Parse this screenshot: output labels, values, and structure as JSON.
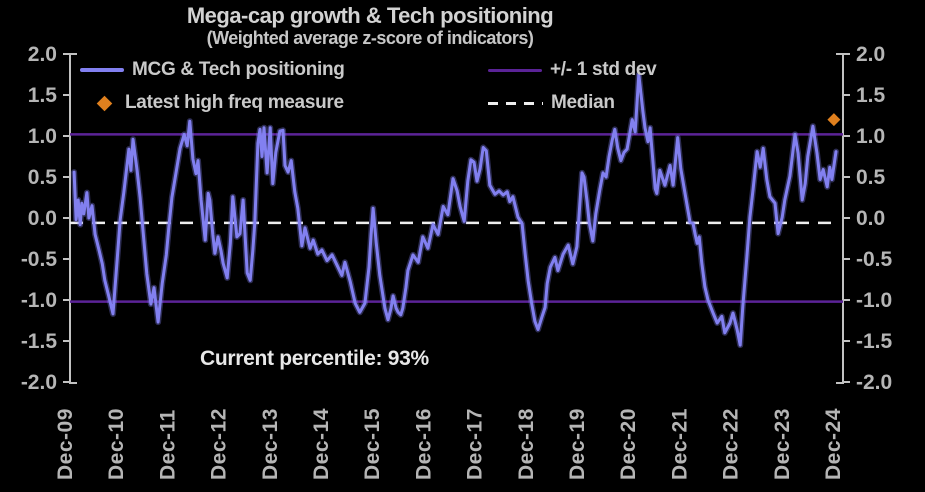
{
  "chart_data": {
    "type": "line",
    "title": "Mega-cap growth & Tech positioning",
    "subtitle": "(Weighted average z-score of indicators)",
    "annotation": "Current percentile: 93%",
    "legend": [
      {
        "label": "MCG & Tech positioning",
        "swatch": "line"
      },
      {
        "label": "+/- 1 std dev",
        "swatch": "line"
      },
      {
        "label": "Latest high freq measure",
        "swatch": "diamond"
      },
      {
        "label": "Median",
        "swatch": "dashed"
      }
    ],
    "x_unit": "years since Dec-2009",
    "x_ticks": [
      0,
      1,
      2,
      3,
      4,
      5,
      6,
      7,
      8,
      9,
      10,
      11,
      12,
      13,
      14,
      15
    ],
    "x_tick_labels": [
      "Dec-09",
      "Dec-10",
      "Dec-11",
      "Dec-12",
      "Dec-13",
      "Dec-14",
      "Dec-15",
      "Dec-16",
      "Dec-17",
      "Dec-18",
      "Dec-19",
      "Dec-20",
      "Dec-21",
      "Dec-22",
      "Dec-23",
      "Dec-24"
    ],
    "ylim": [
      -2.0,
      2.0
    ],
    "y_ticks": [
      2.0,
      1.5,
      1.0,
      0.5,
      0.0,
      -0.5,
      -1.0,
      -1.5,
      -2.0
    ],
    "y_tick_labels": [
      "2.0",
      "1.5",
      "1.0",
      "0.5",
      "0.0",
      "-0.5",
      "-1.0",
      "-1.5",
      "-2.0"
    ],
    "grid": false,
    "legend_position": "top-inside",
    "reference_lines": {
      "plus_one_std": 1.02,
      "minus_one_std": -1.02,
      "median": -0.06
    },
    "latest_high_freq_measure": {
      "t": 14.92,
      "value": 1.2
    },
    "series": [
      {
        "name": "MCG & Tech positioning",
        "points": [
          [
            0.08,
            0.56
          ],
          [
            0.12,
            -0.02
          ],
          [
            0.16,
            0.22
          ],
          [
            0.2,
            -0.08
          ],
          [
            0.23,
            0.18
          ],
          [
            0.27,
            0.05
          ],
          [
            0.33,
            0.31
          ],
          [
            0.37,
            0.0
          ],
          [
            0.43,
            0.15
          ],
          [
            0.49,
            -0.2
          ],
          [
            0.57,
            -0.4
          ],
          [
            0.63,
            -0.56
          ],
          [
            0.68,
            -0.76
          ],
          [
            0.76,
            -0.96
          ],
          [
            0.84,
            -1.17
          ],
          [
            0.92,
            -0.52
          ],
          [
            0.98,
            -0.02
          ],
          [
            1.05,
            0.31
          ],
          [
            1.15,
            0.84
          ],
          [
            1.19,
            0.58
          ],
          [
            1.23,
            0.96
          ],
          [
            1.31,
            0.58
          ],
          [
            1.37,
            0.25
          ],
          [
            1.43,
            -0.18
          ],
          [
            1.5,
            -0.68
          ],
          [
            1.58,
            -1.05
          ],
          [
            1.64,
            -0.85
          ],
          [
            1.72,
            -1.27
          ],
          [
            1.8,
            -0.8
          ],
          [
            1.88,
            -0.45
          ],
          [
            1.93,
            -0.12
          ],
          [
            1.99,
            0.25
          ],
          [
            2.07,
            0.55
          ],
          [
            2.15,
            0.85
          ],
          [
            2.23,
            1.02
          ],
          [
            2.29,
            0.88
          ],
          [
            2.34,
            1.18
          ],
          [
            2.4,
            0.72
          ],
          [
            2.46,
            0.54
          ],
          [
            2.5,
            0.7
          ],
          [
            2.56,
            0.22
          ],
          [
            2.64,
            -0.27
          ],
          [
            2.7,
            0.3
          ],
          [
            2.73,
            0.22
          ],
          [
            2.79,
            -0.2
          ],
          [
            2.83,
            -0.43
          ],
          [
            2.89,
            -0.23
          ],
          [
            2.95,
            -0.4
          ],
          [
            2.99,
            -0.55
          ],
          [
            3.07,
            -0.73
          ],
          [
            3.13,
            -0.31
          ],
          [
            3.18,
            0.26
          ],
          [
            3.26,
            -0.23
          ],
          [
            3.32,
            -0.19
          ],
          [
            3.38,
            0.22
          ],
          [
            3.46,
            -0.67
          ],
          [
            3.52,
            -0.76
          ],
          [
            3.57,
            -0.4
          ],
          [
            3.61,
            -0.06
          ],
          [
            3.67,
            0.91
          ],
          [
            3.71,
            1.08
          ],
          [
            3.75,
            0.75
          ],
          [
            3.79,
            1.1
          ],
          [
            3.85,
            0.55
          ],
          [
            3.91,
            1.1
          ],
          [
            3.96,
            0.42
          ],
          [
            4.02,
            0.8
          ],
          [
            4.1,
            1.06
          ],
          [
            4.16,
            1.07
          ],
          [
            4.2,
            0.64
          ],
          [
            4.26,
            0.56
          ],
          [
            4.32,
            0.7
          ],
          [
            4.39,
            0.32
          ],
          [
            4.45,
            0.12
          ],
          [
            4.53,
            -0.34
          ],
          [
            4.59,
            -0.12
          ],
          [
            4.69,
            -0.37
          ],
          [
            4.75,
            -0.27
          ],
          [
            4.84,
            -0.44
          ],
          [
            4.92,
            -0.39
          ],
          [
            5.02,
            -0.52
          ],
          [
            5.12,
            -0.45
          ],
          [
            5.21,
            -0.57
          ],
          [
            5.31,
            -0.7
          ],
          [
            5.37,
            -0.54
          ],
          [
            5.47,
            -0.77
          ],
          [
            5.57,
            -1.04
          ],
          [
            5.66,
            -1.15
          ],
          [
            5.76,
            -1.04
          ],
          [
            5.84,
            -0.6
          ],
          [
            5.88,
            -0.2
          ],
          [
            5.92,
            0.12
          ],
          [
            5.98,
            -0.3
          ],
          [
            6.05,
            -0.7
          ],
          [
            6.15,
            -1.1
          ],
          [
            6.21,
            -1.24
          ],
          [
            6.27,
            -1.1
          ],
          [
            6.31,
            -0.95
          ],
          [
            6.37,
            -1.1
          ],
          [
            6.41,
            -1.15
          ],
          [
            6.46,
            -1.18
          ],
          [
            6.5,
            -1.1
          ],
          [
            6.56,
            -0.85
          ],
          [
            6.6,
            -0.64
          ],
          [
            6.7,
            -0.45
          ],
          [
            6.8,
            -0.54
          ],
          [
            6.89,
            -0.23
          ],
          [
            6.99,
            -0.37
          ],
          [
            7.09,
            -0.08
          ],
          [
            7.19,
            -0.2
          ],
          [
            7.29,
            0.14
          ],
          [
            7.38,
            0.04
          ],
          [
            7.48,
            0.48
          ],
          [
            7.56,
            0.33
          ],
          [
            7.62,
            0.14
          ],
          [
            7.7,
            -0.04
          ],
          [
            7.77,
            0.45
          ],
          [
            7.83,
            0.71
          ],
          [
            7.89,
            0.68
          ],
          [
            7.95,
            0.45
          ],
          [
            8.01,
            0.6
          ],
          [
            8.07,
            0.86
          ],
          [
            8.13,
            0.82
          ],
          [
            8.2,
            0.4
          ],
          [
            8.3,
            0.29
          ],
          [
            8.38,
            0.33
          ],
          [
            8.46,
            0.28
          ],
          [
            8.54,
            0.32
          ],
          [
            8.59,
            0.2
          ],
          [
            8.65,
            0.26
          ],
          [
            8.75,
            0.01
          ],
          [
            8.83,
            -0.07
          ],
          [
            8.89,
            -0.44
          ],
          [
            8.95,
            -0.77
          ],
          [
            9.02,
            -1.05
          ],
          [
            9.08,
            -1.26
          ],
          [
            9.14,
            -1.36
          ],
          [
            9.22,
            -1.2
          ],
          [
            9.28,
            -1.09
          ],
          [
            9.32,
            -0.8
          ],
          [
            9.38,
            -0.6
          ],
          [
            9.47,
            -0.48
          ],
          [
            9.53,
            -0.64
          ],
          [
            9.63,
            -0.44
          ],
          [
            9.73,
            -0.33
          ],
          [
            9.82,
            -0.56
          ],
          [
            9.9,
            -0.35
          ],
          [
            9.96,
            0.2
          ],
          [
            10.0,
            0.55
          ],
          [
            10.04,
            0.5
          ],
          [
            10.1,
            0.2
          ],
          [
            10.14,
            -0.05
          ],
          [
            10.21,
            -0.28
          ],
          [
            10.27,
            0.05
          ],
          [
            10.35,
            0.35
          ],
          [
            10.41,
            0.55
          ],
          [
            10.47,
            0.5
          ],
          [
            10.53,
            0.75
          ],
          [
            10.59,
            0.95
          ],
          [
            10.64,
            1.08
          ],
          [
            10.7,
            0.85
          ],
          [
            10.76,
            0.7
          ],
          [
            10.82,
            0.8
          ],
          [
            10.88,
            0.84
          ],
          [
            10.94,
            1.05
          ],
          [
            10.98,
            1.2
          ],
          [
            11.04,
            1.05
          ],
          [
            11.11,
            1.75
          ],
          [
            11.19,
            1.3
          ],
          [
            11.23,
            1.1
          ],
          [
            11.29,
            0.93
          ],
          [
            11.33,
            1.1
          ],
          [
            11.43,
            0.36
          ],
          [
            11.46,
            0.3
          ],
          [
            11.52,
            0.58
          ],
          [
            11.62,
            0.4
          ],
          [
            11.72,
            0.64
          ],
          [
            11.78,
            0.4
          ],
          [
            11.87,
            0.98
          ],
          [
            11.93,
            0.6
          ],
          [
            12.01,
            0.31
          ],
          [
            12.11,
            -0.05
          ],
          [
            12.17,
            -0.07
          ],
          [
            12.21,
            -0.2
          ],
          [
            12.25,
            -0.31
          ],
          [
            12.29,
            -0.23
          ],
          [
            12.34,
            -0.55
          ],
          [
            12.4,
            -0.84
          ],
          [
            12.46,
            -1.0
          ],
          [
            12.56,
            -1.16
          ],
          [
            12.64,
            -1.28
          ],
          [
            12.73,
            -1.2
          ],
          [
            12.79,
            -1.4
          ],
          [
            12.89,
            -1.28
          ],
          [
            12.95,
            -1.16
          ],
          [
            13.03,
            -1.36
          ],
          [
            13.09,
            -1.55
          ],
          [
            13.14,
            -1.08
          ],
          [
            13.22,
            -0.47
          ],
          [
            13.28,
            0.01
          ],
          [
            13.34,
            0.34
          ],
          [
            13.42,
            0.81
          ],
          [
            13.48,
            0.62
          ],
          [
            13.54,
            0.85
          ],
          [
            13.61,
            0.47
          ],
          [
            13.67,
            0.26
          ],
          [
            13.77,
            0.18
          ],
          [
            13.83,
            -0.19
          ],
          [
            13.91,
            0.01
          ],
          [
            13.96,
            0.22
          ],
          [
            14.06,
            0.51
          ],
          [
            14.16,
            1.02
          ],
          [
            14.22,
            0.79
          ],
          [
            14.3,
            0.22
          ],
          [
            14.36,
            0.42
          ],
          [
            14.41,
            0.75
          ],
          [
            14.51,
            1.12
          ],
          [
            14.59,
            0.79
          ],
          [
            14.65,
            0.47
          ],
          [
            14.71,
            0.59
          ],
          [
            14.79,
            0.38
          ],
          [
            14.84,
            0.62
          ],
          [
            14.88,
            0.47
          ],
          [
            14.96,
            0.81
          ]
        ]
      }
    ],
    "colors": {
      "background": "#000000",
      "series_line": "#8280f0",
      "std_dev_line": "#5b2397",
      "median_line": "#eeeeee",
      "diamond": "#e0801e",
      "axis_line": "#c2c2c2",
      "tick_label": "#b5b5b5"
    }
  }
}
